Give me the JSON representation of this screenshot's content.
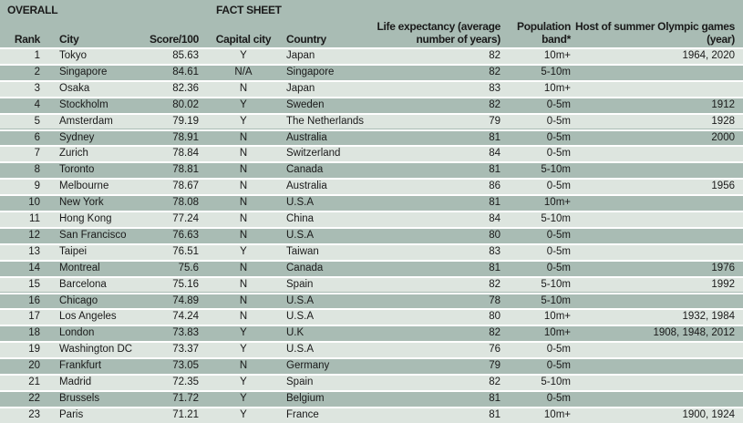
{
  "sections": {
    "overall": "OVERALL",
    "fact_sheet": "FACT SHEET"
  },
  "columns": {
    "rank": "Rank",
    "city": "City",
    "score": "Score/100",
    "capital": "Capital city",
    "country": "Country",
    "life_line1": "Life expectancy (average",
    "life_line2": "number of years)",
    "pop_line1": "Population",
    "pop_line2": "band*",
    "oly_line1": "Host of summer Olympic games",
    "oly_line2": "(year)"
  },
  "colors": {
    "header_bg": "#a9bcb4",
    "alt_row_bg": "#dde5df",
    "separator": "#ffffff"
  },
  "rows": [
    {
      "rank": "1",
      "city": "Tokyo",
      "score": "85.63",
      "capital": "Y",
      "country": "Japan",
      "life": "82",
      "pop": "10m+",
      "olympic": "1964, 2020"
    },
    {
      "rank": "2",
      "city": "Singapore",
      "score": "84.61",
      "capital": "N/A",
      "country": "Singapore",
      "life": "82",
      "pop": "5-10m",
      "olympic": ""
    },
    {
      "rank": "3",
      "city": "Osaka",
      "score": "82.36",
      "capital": "N",
      "country": "Japan",
      "life": "83",
      "pop": "10m+",
      "olympic": ""
    },
    {
      "rank": "4",
      "city": "Stockholm",
      "score": "80.02",
      "capital": "Y",
      "country": "Sweden",
      "life": "82",
      "pop": "0-5m",
      "olympic": "1912"
    },
    {
      "rank": "5",
      "city": "Amsterdam",
      "score": "79.19",
      "capital": "Y",
      "country": "The Netherlands",
      "life": "79",
      "pop": "0-5m",
      "olympic": "1928"
    },
    {
      "rank": "6",
      "city": "Sydney",
      "score": "78.91",
      "capital": "N",
      "country": "Australia",
      "life": "81",
      "pop": "0-5m",
      "olympic": "2000"
    },
    {
      "rank": "7",
      "city": "Zurich",
      "score": "78.84",
      "capital": "N",
      "country": "Switzerland",
      "life": "84",
      "pop": "0-5m",
      "olympic": ""
    },
    {
      "rank": "8",
      "city": "Toronto",
      "score": "78.81",
      "capital": "N",
      "country": "Canada",
      "life": "81",
      "pop": "5-10m",
      "olympic": ""
    },
    {
      "rank": "9",
      "city": "Melbourne",
      "score": "78.67",
      "capital": "N",
      "country": "Australia",
      "life": "86",
      "pop": "0-5m",
      "olympic": "1956"
    },
    {
      "rank": "10",
      "city": "New York",
      "score": "78.08",
      "capital": "N",
      "country": "U.S.A",
      "life": "81",
      "pop": "10m+",
      "olympic": ""
    },
    {
      "rank": "11",
      "city": "Hong Kong",
      "score": "77.24",
      "capital": "N",
      "country": "China",
      "life": "84",
      "pop": "5-10m",
      "olympic": ""
    },
    {
      "rank": "12",
      "city": "San Francisco",
      "score": "76.63",
      "capital": "N",
      "country": "U.S.A",
      "life": "80",
      "pop": "0-5m",
      "olympic": ""
    },
    {
      "rank": "13",
      "city": "Taipei",
      "score": "76.51",
      "capital": "Y",
      "country": "Taiwan",
      "life": "83",
      "pop": "0-5m",
      "olympic": ""
    },
    {
      "rank": "14",
      "city": "Montreal",
      "score": "75.6",
      "capital": "N",
      "country": "Canada",
      "life": "81",
      "pop": "0-5m",
      "olympic": "1976"
    },
    {
      "rank": "15",
      "city": "Barcelona",
      "score": "75.16",
      "capital": "N",
      "country": "Spain",
      "life": "82",
      "pop": "5-10m",
      "olympic": "1992"
    },
    {
      "rank": "16",
      "city": "Chicago",
      "score": "74.89",
      "capital": "N",
      "country": "U.S.A",
      "life": "78",
      "pop": "5-10m",
      "olympic": ""
    },
    {
      "rank": "17",
      "city": "Los Angeles",
      "score": "74.24",
      "capital": "N",
      "country": "U.S.A",
      "life": "80",
      "pop": "10m+",
      "olympic": "1932, 1984"
    },
    {
      "rank": "18",
      "city": "London",
      "score": "73.83",
      "capital": "Y",
      "country": "U.K",
      "life": "82",
      "pop": "10m+",
      "olympic": "1908, 1948, 2012"
    },
    {
      "rank": "19",
      "city": "Washington DC",
      "score": "73.37",
      "capital": "Y",
      "country": "U.S.A",
      "life": "76",
      "pop": "0-5m",
      "olympic": ""
    },
    {
      "rank": "20",
      "city": "Frankfurt",
      "score": "73.05",
      "capital": "N",
      "country": "Germany",
      "life": "79",
      "pop": "0-5m",
      "olympic": ""
    },
    {
      "rank": "21",
      "city": "Madrid",
      "score": "72.35",
      "capital": "Y",
      "country": "Spain",
      "life": "82",
      "pop": "5-10m",
      "olympic": ""
    },
    {
      "rank": "22",
      "city": "Brussels",
      "score": "71.72",
      "capital": "Y",
      "country": "Belgium",
      "life": "81",
      "pop": "0-5m",
      "olympic": ""
    },
    {
      "rank": "23",
      "city": "Paris",
      "score": "71.21",
      "capital": "Y",
      "country": "France",
      "life": "81",
      "pop": "10m+",
      "olympic": "1900, 1924"
    }
  ]
}
